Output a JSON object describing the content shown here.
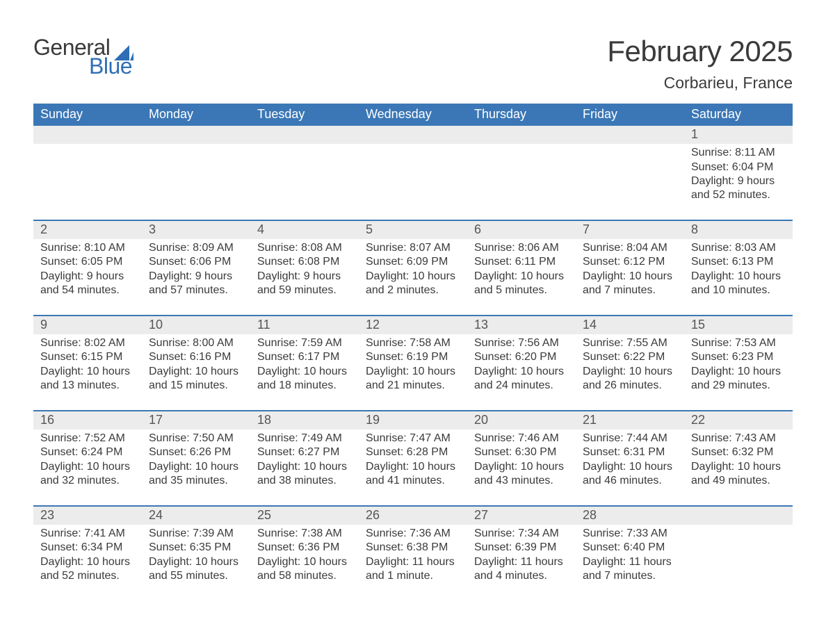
{
  "brand": {
    "word1": "General",
    "word2": "Blue",
    "text_color": "#3a3a3a",
    "accent_color": "#2f6eb5"
  },
  "title": "February 2025",
  "location": "Corbarieu, France",
  "colors": {
    "header_bg": "#3b77b6",
    "header_text": "#ffffff",
    "daynum_bg": "#ececec",
    "week_border": "#3b77b6",
    "body_text": "#3a3a3a",
    "page_bg": "#ffffff"
  },
  "typography": {
    "title_fontsize": 42,
    "location_fontsize": 23,
    "dow_fontsize": 18,
    "body_fontsize": 16,
    "daynum_fontsize": 18
  },
  "days_of_week": [
    "Sunday",
    "Monday",
    "Tuesday",
    "Wednesday",
    "Thursday",
    "Friday",
    "Saturday"
  ],
  "weeks": [
    [
      {
        "day": "",
        "sunrise": "",
        "sunset": "",
        "daylight": ""
      },
      {
        "day": "",
        "sunrise": "",
        "sunset": "",
        "daylight": ""
      },
      {
        "day": "",
        "sunrise": "",
        "sunset": "",
        "daylight": ""
      },
      {
        "day": "",
        "sunrise": "",
        "sunset": "",
        "daylight": ""
      },
      {
        "day": "",
        "sunrise": "",
        "sunset": "",
        "daylight": ""
      },
      {
        "day": "",
        "sunrise": "",
        "sunset": "",
        "daylight": ""
      },
      {
        "day": "1",
        "sunrise": "Sunrise: 8:11 AM",
        "sunset": "Sunset: 6:04 PM",
        "daylight": "Daylight: 9 hours and 52 minutes."
      }
    ],
    [
      {
        "day": "2",
        "sunrise": "Sunrise: 8:10 AM",
        "sunset": "Sunset: 6:05 PM",
        "daylight": "Daylight: 9 hours and 54 minutes."
      },
      {
        "day": "3",
        "sunrise": "Sunrise: 8:09 AM",
        "sunset": "Sunset: 6:06 PM",
        "daylight": "Daylight: 9 hours and 57 minutes."
      },
      {
        "day": "4",
        "sunrise": "Sunrise: 8:08 AM",
        "sunset": "Sunset: 6:08 PM",
        "daylight": "Daylight: 9 hours and 59 minutes."
      },
      {
        "day": "5",
        "sunrise": "Sunrise: 8:07 AM",
        "sunset": "Sunset: 6:09 PM",
        "daylight": "Daylight: 10 hours and 2 minutes."
      },
      {
        "day": "6",
        "sunrise": "Sunrise: 8:06 AM",
        "sunset": "Sunset: 6:11 PM",
        "daylight": "Daylight: 10 hours and 5 minutes."
      },
      {
        "day": "7",
        "sunrise": "Sunrise: 8:04 AM",
        "sunset": "Sunset: 6:12 PM",
        "daylight": "Daylight: 10 hours and 7 minutes."
      },
      {
        "day": "8",
        "sunrise": "Sunrise: 8:03 AM",
        "sunset": "Sunset: 6:13 PM",
        "daylight": "Daylight: 10 hours and 10 minutes."
      }
    ],
    [
      {
        "day": "9",
        "sunrise": "Sunrise: 8:02 AM",
        "sunset": "Sunset: 6:15 PM",
        "daylight": "Daylight: 10 hours and 13 minutes."
      },
      {
        "day": "10",
        "sunrise": "Sunrise: 8:00 AM",
        "sunset": "Sunset: 6:16 PM",
        "daylight": "Daylight: 10 hours and 15 minutes."
      },
      {
        "day": "11",
        "sunrise": "Sunrise: 7:59 AM",
        "sunset": "Sunset: 6:17 PM",
        "daylight": "Daylight: 10 hours and 18 minutes."
      },
      {
        "day": "12",
        "sunrise": "Sunrise: 7:58 AM",
        "sunset": "Sunset: 6:19 PM",
        "daylight": "Daylight: 10 hours and 21 minutes."
      },
      {
        "day": "13",
        "sunrise": "Sunrise: 7:56 AM",
        "sunset": "Sunset: 6:20 PM",
        "daylight": "Daylight: 10 hours and 24 minutes."
      },
      {
        "day": "14",
        "sunrise": "Sunrise: 7:55 AM",
        "sunset": "Sunset: 6:22 PM",
        "daylight": "Daylight: 10 hours and 26 minutes."
      },
      {
        "day": "15",
        "sunrise": "Sunrise: 7:53 AM",
        "sunset": "Sunset: 6:23 PM",
        "daylight": "Daylight: 10 hours and 29 minutes."
      }
    ],
    [
      {
        "day": "16",
        "sunrise": "Sunrise: 7:52 AM",
        "sunset": "Sunset: 6:24 PM",
        "daylight": "Daylight: 10 hours and 32 minutes."
      },
      {
        "day": "17",
        "sunrise": "Sunrise: 7:50 AM",
        "sunset": "Sunset: 6:26 PM",
        "daylight": "Daylight: 10 hours and 35 minutes."
      },
      {
        "day": "18",
        "sunrise": "Sunrise: 7:49 AM",
        "sunset": "Sunset: 6:27 PM",
        "daylight": "Daylight: 10 hours and 38 minutes."
      },
      {
        "day": "19",
        "sunrise": "Sunrise: 7:47 AM",
        "sunset": "Sunset: 6:28 PM",
        "daylight": "Daylight: 10 hours and 41 minutes."
      },
      {
        "day": "20",
        "sunrise": "Sunrise: 7:46 AM",
        "sunset": "Sunset: 6:30 PM",
        "daylight": "Daylight: 10 hours and 43 minutes."
      },
      {
        "day": "21",
        "sunrise": "Sunrise: 7:44 AM",
        "sunset": "Sunset: 6:31 PM",
        "daylight": "Daylight: 10 hours and 46 minutes."
      },
      {
        "day": "22",
        "sunrise": "Sunrise: 7:43 AM",
        "sunset": "Sunset: 6:32 PM",
        "daylight": "Daylight: 10 hours and 49 minutes."
      }
    ],
    [
      {
        "day": "23",
        "sunrise": "Sunrise: 7:41 AM",
        "sunset": "Sunset: 6:34 PM",
        "daylight": "Daylight: 10 hours and 52 minutes."
      },
      {
        "day": "24",
        "sunrise": "Sunrise: 7:39 AM",
        "sunset": "Sunset: 6:35 PM",
        "daylight": "Daylight: 10 hours and 55 minutes."
      },
      {
        "day": "25",
        "sunrise": "Sunrise: 7:38 AM",
        "sunset": "Sunset: 6:36 PM",
        "daylight": "Daylight: 10 hours and 58 minutes."
      },
      {
        "day": "26",
        "sunrise": "Sunrise: 7:36 AM",
        "sunset": "Sunset: 6:38 PM",
        "daylight": "Daylight: 11 hours and 1 minute."
      },
      {
        "day": "27",
        "sunrise": "Sunrise: 7:34 AM",
        "sunset": "Sunset: 6:39 PM",
        "daylight": "Daylight: 11 hours and 4 minutes."
      },
      {
        "day": "28",
        "sunrise": "Sunrise: 7:33 AM",
        "sunset": "Sunset: 6:40 PM",
        "daylight": "Daylight: 11 hours and 7 minutes."
      },
      {
        "day": "",
        "sunrise": "",
        "sunset": "",
        "daylight": ""
      }
    ]
  ]
}
